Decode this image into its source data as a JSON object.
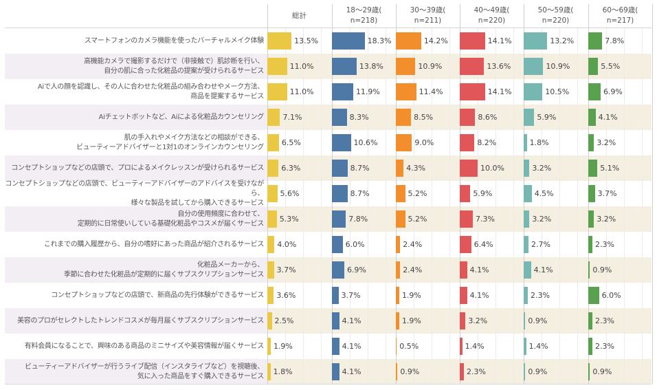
{
  "chart_data": {
    "type": "bar",
    "orientation": "horizontal",
    "title": "",
    "xlabel": "",
    "ylabel": "",
    "value_format": "percent_1dp",
    "xlim": [
      0,
      36
    ],
    "grid": true,
    "categories": [
      "スマートフォンのカメラ機能を使ったバーチャルメイク体験",
      "高機能カメラで撮影するだけで（非接触で）肌診断を行い、\n自分の肌に合った化粧品の提案が受けられるサービス",
      "Aiで人の顔を認識し、その人に合わせた化粧品の組み合わせやメーク方法、\n商品を提案するサービス",
      "Aiチェットボットなど、Aiによる化粧品カウンセリング",
      "肌の手入れやメイク方法などの相談ができる、\nビューティーアドバイザーと1対1のオンラインカウンセリング",
      "コンセプトショップなどの店頭で、プロによるメイクレッスンが受けられるサービス",
      "コンセプトショップなどの店頭で、ビューティーアドバイザーのアドバイスを受けながら、\n様々な製品を試してから購入できるサービス",
      "自分の使用頻度に合わせて、\n定期的に日常使いしている基礎化粧品やコスメが届くサービス",
      "これまでの購入履歴から、自分の嗜好にあった商品が紹介されるサービス",
      "化粧品メーカーから、\n季節に合わせた化粧品が定期的に届くサブスクリプションサービス",
      "コンセプトショップなどの店頭で、新商品の先行体験ができるサービス",
      "美容のプロがセレクトしたトレンドコスメが毎月届くサブスクリプションサービス",
      "有料会員になることで、興味のある商品のミニサイズや美容情報が届くサービス",
      "ビューティーアドバイザーが行うライブ配信（インスタライブなど）を視聴後、\n気に入った商品をすぐ購入できるサービス"
    ],
    "series": [
      {
        "name": "総計",
        "color": "#EBC843",
        "values": [
          13.5,
          11.0,
          11.0,
          7.1,
          6.5,
          6.3,
          5.6,
          5.3,
          4.0,
          3.7,
          3.6,
          2.5,
          1.9,
          1.8
        ]
      },
      {
        "name": "18～29歳(\nn=218)",
        "color": "#4E79A7",
        "values": [
          18.3,
          13.8,
          11.9,
          8.3,
          10.6,
          8.7,
          8.7,
          7.8,
          6.0,
          6.9,
          3.7,
          4.1,
          4.1,
          4.1
        ]
      },
      {
        "name": "30～39歳(\nn=211)",
        "color": "#F28E2B",
        "values": [
          14.2,
          10.9,
          11.4,
          8.5,
          9.0,
          4.3,
          5.2,
          5.2,
          2.4,
          2.4,
          1.9,
          1.9,
          0.5,
          0.9
        ]
      },
      {
        "name": "40～49歳(\nn=220)",
        "color": "#E15759",
        "values": [
          14.1,
          13.6,
          14.1,
          8.6,
          8.2,
          10.0,
          5.9,
          7.3,
          6.4,
          4.1,
          4.1,
          3.2,
          1.4,
          2.3
        ]
      },
      {
        "name": "50～59歳(\nn=220)",
        "color": "#76B7B2",
        "values": [
          13.2,
          10.9,
          10.5,
          5.9,
          1.8,
          3.2,
          4.5,
          3.2,
          2.7,
          4.1,
          2.3,
          0.9,
          1.4,
          0.9
        ]
      },
      {
        "name": "60～69歳(\nn=217)",
        "color": "#59A14F",
        "values": [
          7.8,
          5.5,
          6.9,
          4.1,
          3.2,
          5.1,
          3.7,
          3.2,
          2.3,
          0.9,
          6.0,
          2.3,
          2.3,
          0.9
        ]
      }
    ]
  },
  "style": {
    "band_label_color": "#F3EEF4",
    "band_data_color": "#F5EFE2",
    "text_color": "#555555"
  }
}
